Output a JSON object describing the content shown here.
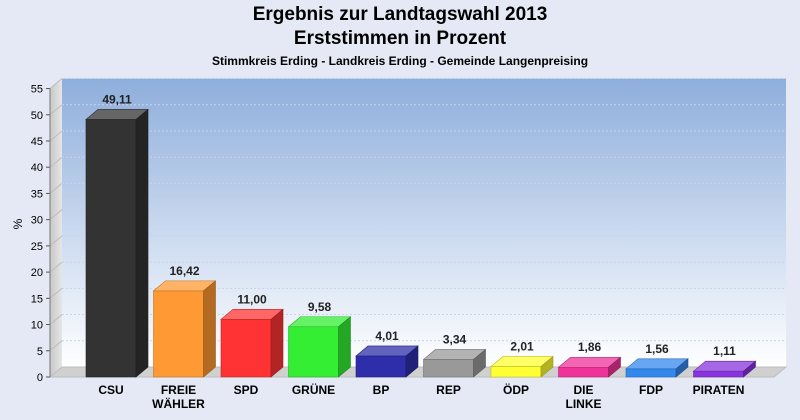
{
  "header": {
    "title_line1": "Ergebnis zur Landtagswahl 2013",
    "title_line2": "Erststimmen in Prozent",
    "subtitle": "Stimmkreis Erding - Landkreis Erding - Gemeinde Langenpreising"
  },
  "chart_data": {
    "type": "bar",
    "title": "Ergebnis zur Landtagswahl 2013 Erststimmen in Prozent",
    "subtitle": "Stimmkreis Erding - Landkreis Erding - Gemeinde Langenpreising",
    "ylabel": "%",
    "xlabel": "",
    "ylim": [
      0,
      55
    ],
    "yticks": [
      0,
      5,
      10,
      15,
      20,
      25,
      30,
      35,
      40,
      45,
      50,
      55
    ],
    "grid": true,
    "categories": [
      [
        "CSU"
      ],
      [
        "FREIE",
        "WÄHLER"
      ],
      [
        "SPD"
      ],
      [
        "GRÜNE"
      ],
      [
        "BP"
      ],
      [
        "REP"
      ],
      [
        "ÖDP"
      ],
      [
        "DIE",
        "LINKE"
      ],
      [
        "FDP"
      ],
      [
        "PIRATEN"
      ]
    ],
    "values": [
      49.11,
      16.42,
      11.0,
      9.58,
      4.01,
      3.34,
      2.01,
      1.86,
      1.56,
      1.11
    ],
    "value_labels": [
      "49,11",
      "16,42",
      "11,00",
      "9,58",
      "4,01",
      "3,34",
      "2,01",
      "1,86",
      "1,56",
      "1,11"
    ],
    "colors": [
      "#333333",
      "#ff9933",
      "#ff3333",
      "#33ee33",
      "#2e2eaa",
      "#999999",
      "#ffff33",
      "#ee3399",
      "#3388ee",
      "#8833dd"
    ]
  }
}
